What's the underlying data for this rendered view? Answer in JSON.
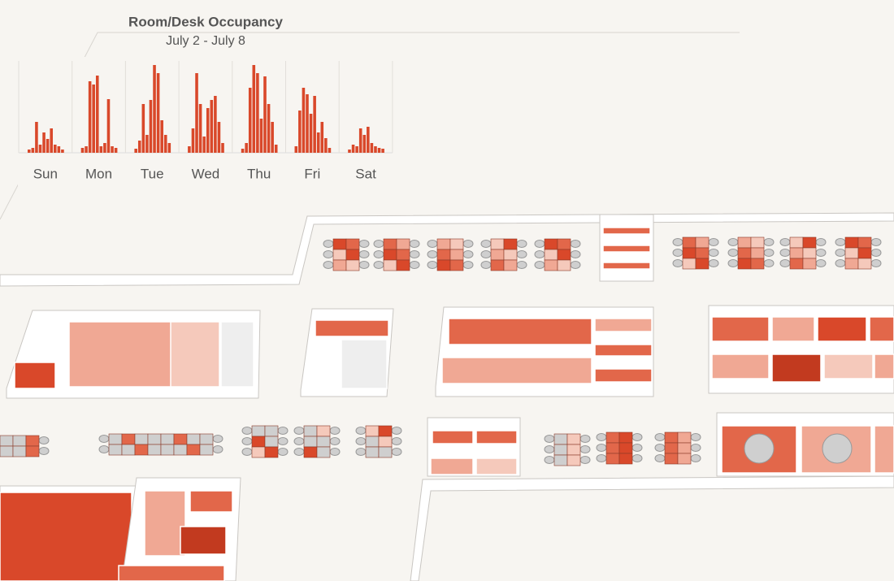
{
  "chart_data": {
    "type": "bar",
    "title": "Room/Desk Occupancy",
    "subtitle": "July 2 - July 8",
    "color": "#d9482a",
    "days": [
      {
        "label": "Sun",
        "values": [
          4,
          6,
          38,
          10,
          25,
          17,
          30,
          10,
          8,
          4
        ]
      },
      {
        "label": "Mon",
        "values": [
          6,
          8,
          88,
          84,
          95,
          8,
          12,
          66,
          8,
          6
        ]
      },
      {
        "label": "Tue",
        "values": [
          5,
          15,
          60,
          22,
          65,
          108,
          98,
          40,
          22,
          12
        ]
      },
      {
        "label": "Wed",
        "values": [
          8,
          30,
          98,
          60,
          20,
          55,
          65,
          70,
          38,
          12
        ]
      },
      {
        "label": "Thu",
        "values": [
          5,
          12,
          80,
          108,
          98,
          42,
          94,
          60,
          38,
          10
        ]
      },
      {
        "label": "Fri",
        "values": [
          8,
          52,
          80,
          72,
          48,
          70,
          25,
          38,
          18,
          6
        ]
      },
      {
        "label": "Sat",
        "values": [
          4,
          10,
          8,
          30,
          22,
          32,
          12,
          8,
          6,
          5
        ]
      }
    ]
  }
}
